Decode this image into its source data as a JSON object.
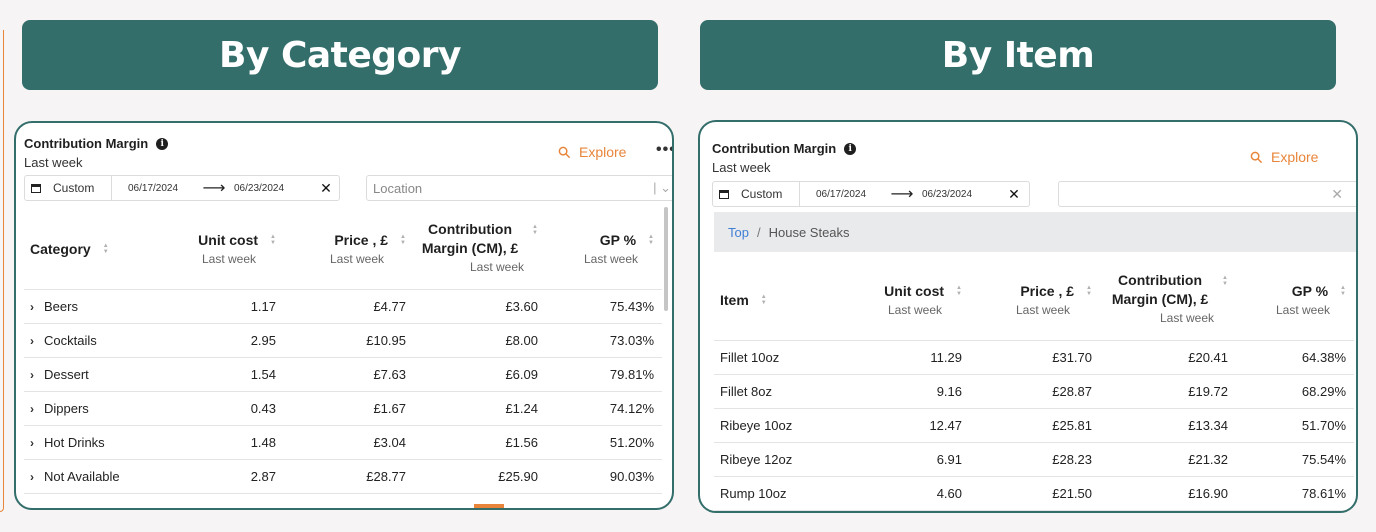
{
  "banners": {
    "left": "By Category",
    "right": "By Item"
  },
  "left_card": {
    "title": "Contribution Margin",
    "subtitle": "Last week",
    "explore": "Explore",
    "more": "•••",
    "date": {
      "mode": "Custom",
      "start": "06/17/2024",
      "end": "06/23/2024"
    },
    "location_placeholder": "Location",
    "columns": [
      {
        "label": "Category",
        "sub": ""
      },
      {
        "label": "Unit cost",
        "sub": "Last week"
      },
      {
        "label": "Price , £",
        "sub": "Last week"
      },
      {
        "label": "Contribution Margin (CM), £",
        "sub": "Last week"
      },
      {
        "label": "GP %",
        "sub": "Last week"
      }
    ],
    "rows": [
      [
        "Beers",
        "1.17",
        "£4.77",
        "£3.60",
        "75.43%"
      ],
      [
        "Cocktails",
        "2.95",
        "£10.95",
        "£8.00",
        "73.03%"
      ],
      [
        "Dessert",
        "1.54",
        "£7.63",
        "£6.09",
        "79.81%"
      ],
      [
        "Dippers",
        "0.43",
        "£1.67",
        "£1.24",
        "74.12%"
      ],
      [
        "Hot Drinks",
        "1.48",
        "£3.04",
        "£1.56",
        "51.20%"
      ],
      [
        "Not Available",
        "2.87",
        "£28.77",
        "£25.90",
        "90.03%"
      ]
    ]
  },
  "right_card": {
    "title": "Contribution Margin",
    "subtitle": "Last week",
    "explore": "Explore",
    "date": {
      "mode": "Custom",
      "start": "06/17/2024",
      "end": "06/23/2024"
    },
    "breadcrumb": {
      "root": "Top",
      "current": "House Steaks"
    },
    "columns": [
      {
        "label": "Item",
        "sub": ""
      },
      {
        "label": "Unit cost",
        "sub": "Last week"
      },
      {
        "label": "Price , £",
        "sub": "Last week"
      },
      {
        "label": "Contribution Margin (CM), £",
        "sub": "Last week"
      },
      {
        "label": "GP %",
        "sub": "Last week"
      }
    ],
    "rows": [
      [
        "Fillet 10oz",
        "11.29",
        "£31.70",
        "£20.41",
        "64.38%"
      ],
      [
        "Fillet 8oz",
        "9.16",
        "£28.87",
        "£19.72",
        "68.29%"
      ],
      [
        "Ribeye 10oz",
        "12.47",
        "£25.81",
        "£13.34",
        "51.70%"
      ],
      [
        "Ribeye 12oz",
        "6.91",
        "£28.23",
        "£21.32",
        "75.54%"
      ],
      [
        "Rump 10oz",
        "4.60",
        "£21.50",
        "£16.90",
        "78.61%"
      ]
    ]
  },
  "colors": {
    "teal": "#336e6b",
    "accent": "#e8853a",
    "link": "#3f7fd4"
  }
}
